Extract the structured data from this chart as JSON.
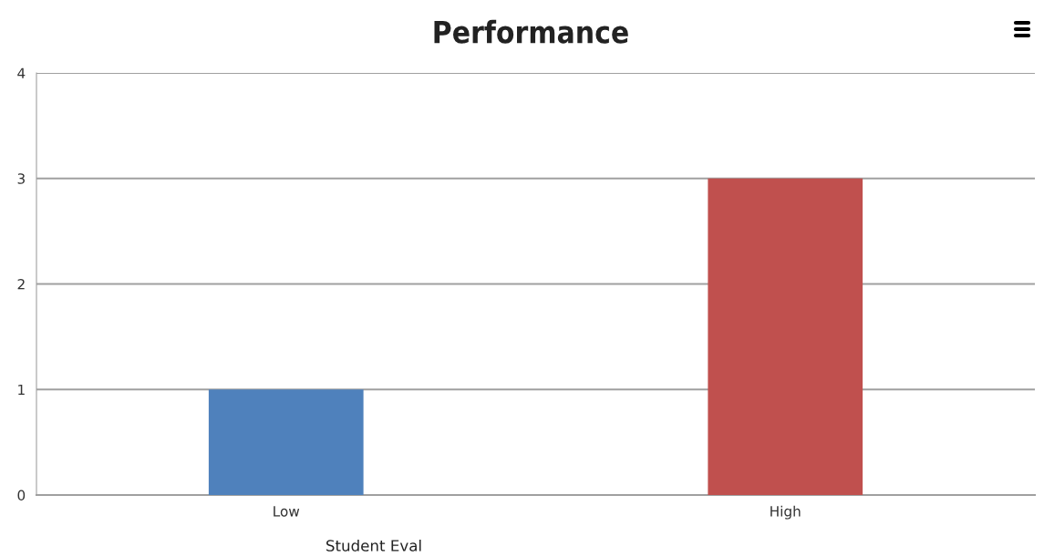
{
  "chart_data": {
    "type": "bar",
    "title": "Performance",
    "xlabel": "Student Eval",
    "categories": [
      "Low",
      "High"
    ],
    "values": [
      1,
      3
    ],
    "colors": [
      "#4f81bc",
      "#c0504e"
    ],
    "ylim": [
      0,
      4
    ],
    "yticks": [
      0,
      1,
      2,
      3,
      4
    ],
    "grid": "y",
    "legend": false
  }
}
